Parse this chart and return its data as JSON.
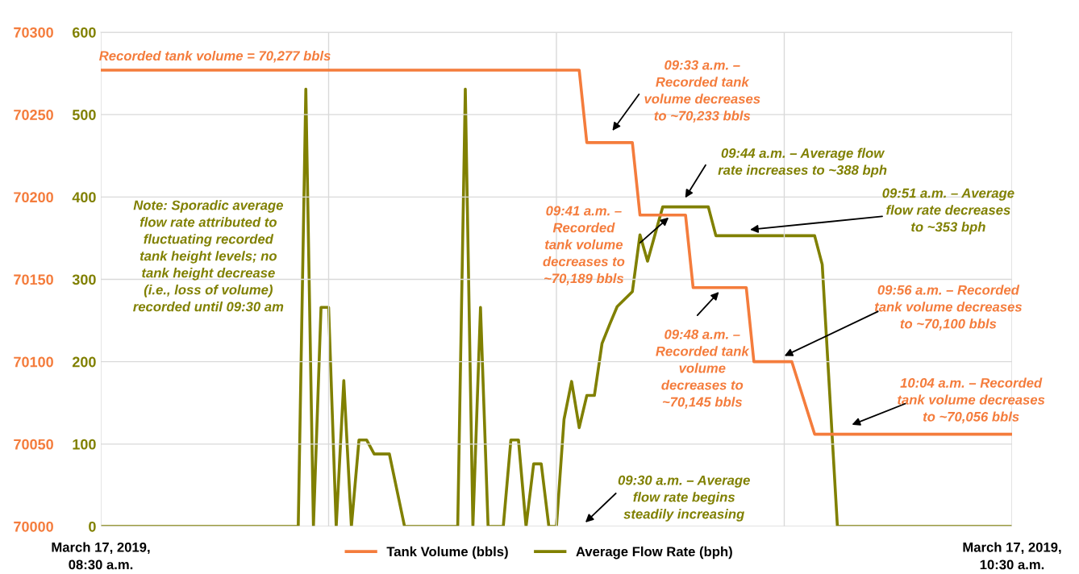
{
  "chart_data": {
    "type": "line",
    "xlim": [
      "2019-03-17T08:30",
      "2019-03-17T10:30"
    ],
    "xticks": [
      {
        "value": "2019-03-17T08:30",
        "label": "March 17, 2019,\n08:30 a.m."
      },
      {
        "value": "2019-03-17T09:00",
        "label": null
      },
      {
        "value": "2019-03-17T09:30",
        "label": null
      },
      {
        "value": "2019-03-17T10:00",
        "label": null
      },
      {
        "value": "2019-03-17T10:30",
        "label": "March 17, 2019,\n10:30 a.m."
      }
    ],
    "ylim": [
      70000,
      70300
    ],
    "yticks": [
      70000,
      70050,
      70100,
      70150,
      70200,
      70250,
      70300
    ],
    "y2lim": [
      0,
      600
    ],
    "y2ticks": [
      0,
      100,
      200,
      300,
      400,
      500,
      600
    ],
    "grid": true,
    "legend": "bottom",
    "line_style": "solid",
    "series": [
      {
        "name": "Tank Volume (bbls)",
        "color": "#f47c3c",
        "x": [
          "2019-03-17T08:30",
          "2019-03-17T09:33",
          "2019-03-17T09:34",
          "2019-03-17T09:40",
          "2019-03-17T09:41",
          "2019-03-17T09:47",
          "2019-03-17T09:48",
          "2019-03-17T09:55",
          "2019-03-17T09:56",
          "2019-03-17T10:01",
          "2019-03-17T10:04",
          "2019-03-17T10:30"
        ],
        "values": [
          70277,
          70277,
          70233,
          70233,
          70189,
          70189,
          70145,
          70145,
          70100,
          70100,
          70056,
          70056
        ]
      },
      {
        "name": "Average Flow Rate (bph)",
        "color": "#808000",
        "axis": "y2",
        "x": [
          "2019-03-17T08:30",
          "2019-03-17T08:56",
          "2019-03-17T08:57",
          "2019-03-17T08:58",
          "2019-03-17T08:59",
          "2019-03-17T09:00",
          "2019-03-17T09:01",
          "2019-03-17T09:02",
          "2019-03-17T09:03",
          "2019-03-17T09:04",
          "2019-03-17T09:05",
          "2019-03-17T09:06",
          "2019-03-17T09:08",
          "2019-03-17T09:10",
          "2019-03-17T09:17",
          "2019-03-17T09:18",
          "2019-03-17T09:19",
          "2019-03-17T09:20",
          "2019-03-17T09:21",
          "2019-03-17T09:23",
          "2019-03-17T09:24",
          "2019-03-17T09:25",
          "2019-03-17T09:26",
          "2019-03-17T09:27",
          "2019-03-17T09:28",
          "2019-03-17T09:29",
          "2019-03-17T09:30",
          "2019-03-17T09:31",
          "2019-03-17T09:32",
          "2019-03-17T09:33",
          "2019-03-17T09:34",
          "2019-03-17T09:35",
          "2019-03-17T09:36",
          "2019-03-17T09:37",
          "2019-03-17T09:38",
          "2019-03-17T09:39",
          "2019-03-17T09:40",
          "2019-03-17T09:41",
          "2019-03-17T09:42",
          "2019-03-17T09:43",
          "2019-03-17T09:44",
          "2019-03-17T09:50",
          "2019-03-17T09:51",
          "2019-03-17T10:04",
          "2019-03-17T10:05",
          "2019-03-17T10:07",
          "2019-03-17T10:30"
        ],
        "values": [
          0,
          0,
          531,
          0,
          266,
          266,
          0,
          177,
          0,
          105,
          105,
          88,
          88,
          0,
          0,
          531,
          0,
          266,
          0,
          0,
          105,
          105,
          0,
          76,
          76,
          0,
          0,
          130,
          176,
          120,
          159,
          159,
          222,
          245,
          267,
          276,
          285,
          354,
          322,
          355,
          388,
          388,
          353,
          353,
          318,
          0,
          0
        ]
      }
    ],
    "annotations": [
      "Recorded tank volume = 70,277 bbls",
      "09:33 a.m. –\nRecorded tank\nvolume decreases\nto ~70,233 bbls",
      "09:44 a.m. – Average flow\nrate increases to ~388 bph",
      "09:51 a.m. – Average\nflow rate decreases\nto ~353 bph",
      "09:41 a.m. –\nRecorded\ntank volume\ndecreases to\n~70,189 bbls",
      "09:48 a.m. –\nRecorded tank\nvolume\ndecreases to\n~70,145 bbls",
      "09:56 a.m. – Recorded\ntank volume decreases\nto ~70,100 bbls",
      "10:04 a.m. – Recorded\ntank volume decreases\nto ~70,056 bbls",
      "09:30 a.m. – Average\nflow rate begins\nsteadily increasing",
      "Note: Sporadic average\nflow rate attributed to\nfluctuating recorded\ntank height levels; no\ntank height decrease\n(i.e., loss of volume)\nrecorded until 09:30 am"
    ]
  }
}
